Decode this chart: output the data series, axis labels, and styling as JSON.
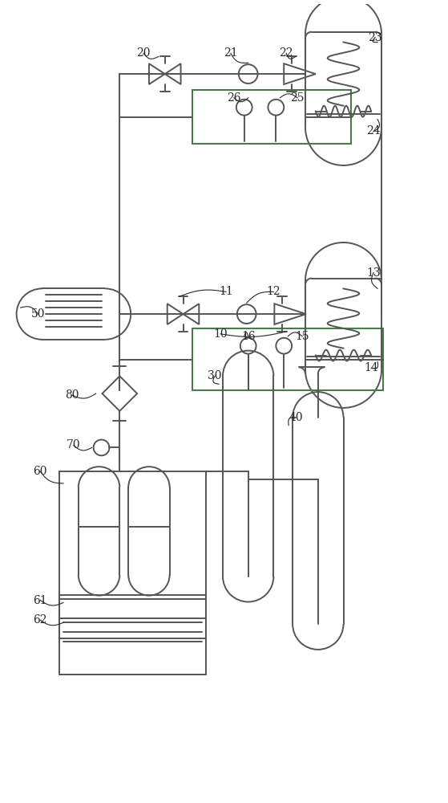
{
  "bg_color": "#ffffff",
  "lc": "#555555",
  "gc": "#4a7a4a",
  "lw": 1.4,
  "fig_w": 5.59,
  "fig_h": 10.0
}
